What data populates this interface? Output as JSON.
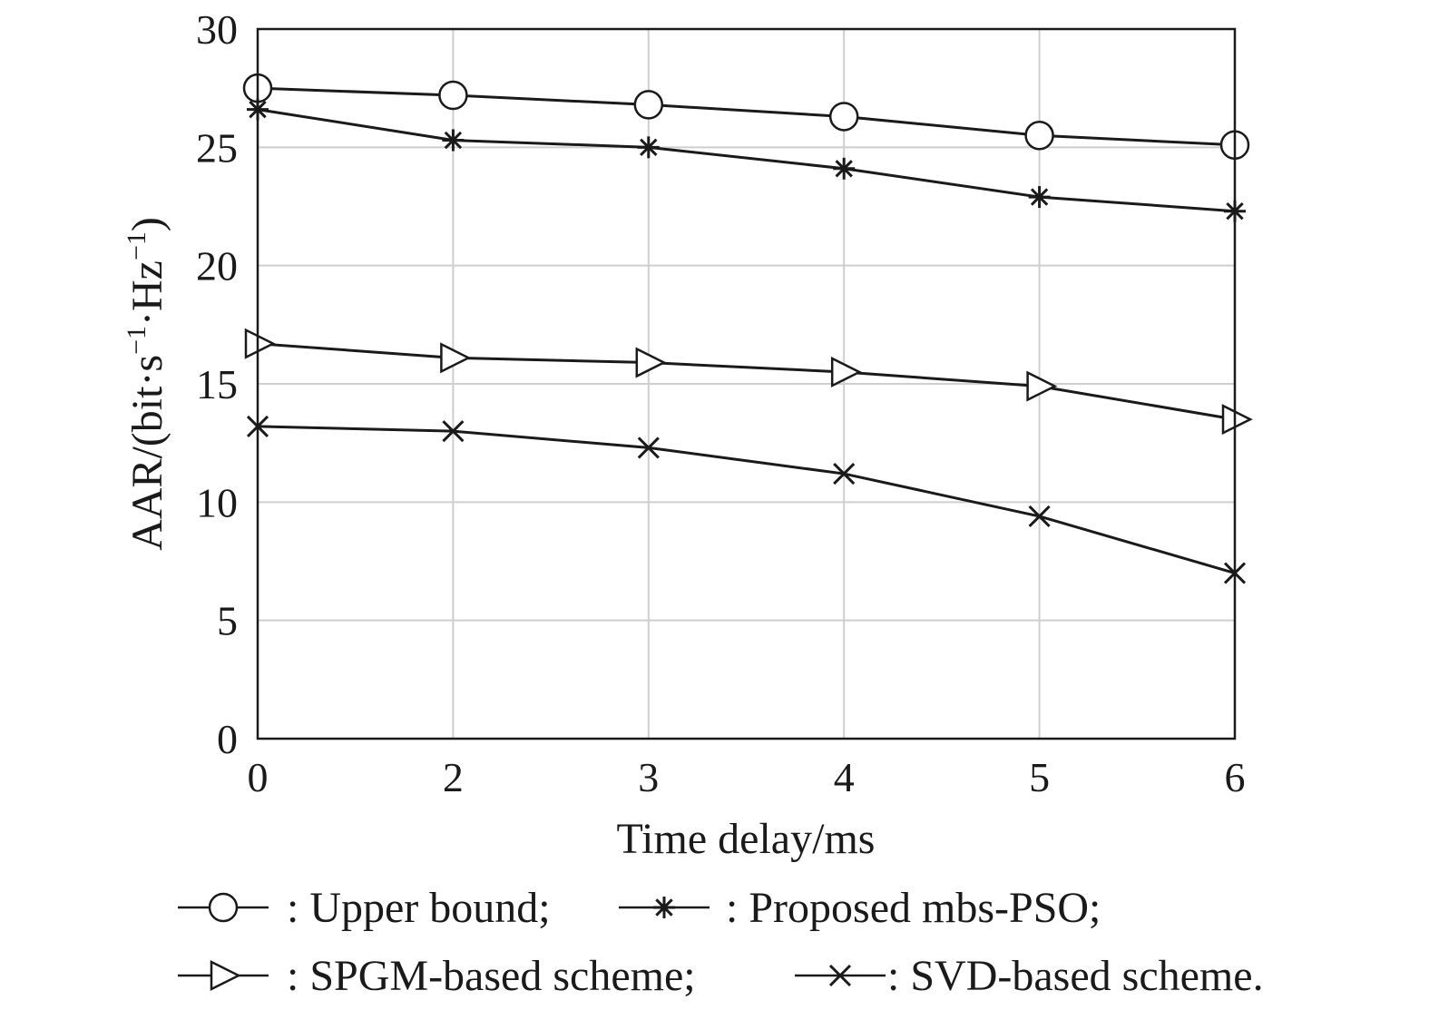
{
  "chart_data": {
    "type": "line",
    "x_tick_labels": [
      "0",
      "2",
      "3",
      "4",
      "5",
      "6"
    ],
    "y_ticks": [
      0,
      5,
      10,
      15,
      20,
      25,
      30
    ],
    "ylim": [
      0,
      30
    ],
    "xlabel": "Time delay/ms",
    "ylabel": {
      "prefix": "AAR/(bit·s",
      "sup1": "−1",
      "middle": "·Hz",
      "sup2": "−1",
      "suffix": ")"
    },
    "grid": true,
    "series": [
      {
        "name": "Upper bound",
        "marker": "circle",
        "legend_label": ": Upper bound;",
        "values": [
          27.5,
          27.2,
          26.8,
          26.3,
          25.5,
          25.1
        ]
      },
      {
        "name": "Proposed mbs-PSO",
        "marker": "asterisk",
        "legend_label": ": Proposed mbs-PSO;",
        "values": [
          26.6,
          25.3,
          25.0,
          24.1,
          22.9,
          22.3
        ]
      },
      {
        "name": "SPGM-based scheme",
        "marker": "triangle-right",
        "legend_label": ": SPGM-based scheme;",
        "values": [
          16.7,
          16.1,
          15.9,
          15.5,
          14.9,
          13.5
        ]
      },
      {
        "name": "SVD-based scheme",
        "marker": "x",
        "legend_label": ": SVD-based scheme.",
        "values": [
          13.2,
          13.0,
          12.3,
          11.2,
          9.4,
          7.0
        ]
      }
    ],
    "legend_position": "bottom"
  },
  "colors": {
    "line": "#1a1a1a",
    "grid": "#cfcfcf",
    "axis": "#1a1a1a"
  }
}
